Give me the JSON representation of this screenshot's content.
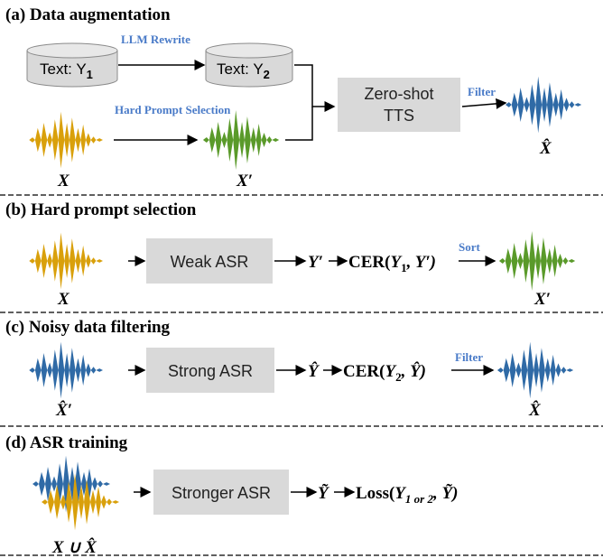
{
  "sections": {
    "a": {
      "title": "(a) Data augmentation",
      "text_y1": "Text: Y",
      "text_y1_sub": "1",
      "text_y2": "Text: Y",
      "text_y2_sub": "2",
      "llm_rewrite": "LLM Rewrite",
      "hard_prompt_selection": "Hard Prompt Selection",
      "tts_line1": "Zero-shot",
      "tts_line2": "TTS",
      "filter": "Filter",
      "label_x": "X",
      "label_x_prime": "X′",
      "label_x_hat": "X̂"
    },
    "b": {
      "title": "(b) Hard prompt selection",
      "box": "Weak ASR",
      "out_y_prime": "Y′",
      "cer_prefix": "CER(",
      "cer_y": "Y",
      "cer_sub": "1",
      "cer_rest": ", Y′)",
      "sort": "Sort",
      "label_x": "X",
      "label_x_prime": "X′"
    },
    "c": {
      "title": "(c) Noisy data filtering",
      "box": "Strong ASR",
      "out_y_hat": "Ŷ",
      "cer_prefix": "CER(",
      "cer_y": "Y",
      "cer_sub": "2",
      "cer_rest": ", Ŷ)",
      "filter": "Filter",
      "label_x_hat_prime": "X̂′",
      "label_x_hat": "X̂"
    },
    "d": {
      "title": "(d) ASR training",
      "box": "Stronger ASR",
      "out_y_tilde": "Ỹ",
      "loss_prefix": "Loss(",
      "loss_y": "Y",
      "loss_sub": "1 or 2",
      "loss_rest": ", Ỹ)",
      "label_union": "X ∪ X̂"
    }
  },
  "colors": {
    "orange": "#d9a00b",
    "green": "#5a9a2a",
    "blue": "#2f6aa6",
    "box_gray": "#d9d9d9",
    "cylinder_gray": "#d9d9d9",
    "edge_label_blue": "#4a7bc8"
  }
}
